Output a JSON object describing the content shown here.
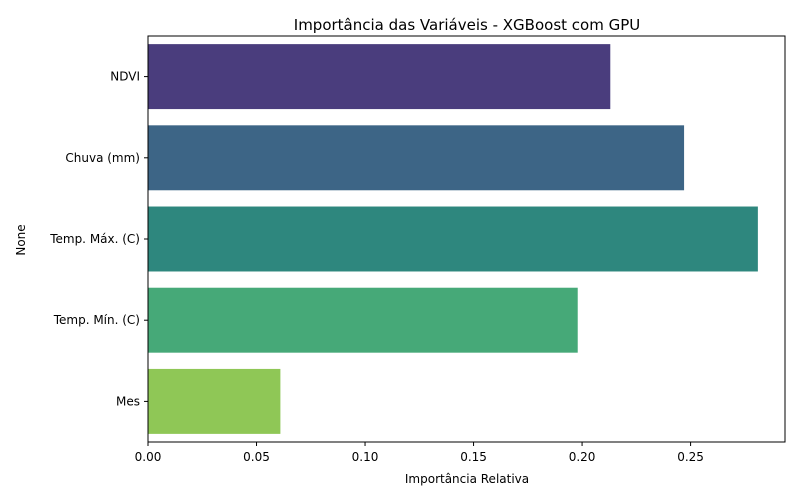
{
  "chart_data": {
    "type": "bar",
    "orientation": "horizontal",
    "title": "Importância das Variáveis - XGBoost com GPU",
    "xlabel": "Importância Relativa",
    "ylabel": "None",
    "categories": [
      "NDVI",
      "Chuva (mm)",
      "Temp. Máx. (C)",
      "Temp. Mín. (C)",
      "Mes"
    ],
    "values": [
      0.213,
      0.247,
      0.281,
      0.198,
      0.061
    ],
    "colors": [
      "#4a3d7d",
      "#3d6586",
      "#2e877e",
      "#46a978",
      "#8fc756"
    ],
    "xlim": [
      0,
      0.2935
    ],
    "xticks": [
      0.0,
      0.05,
      0.1,
      0.15,
      0.2,
      0.25
    ],
    "xtick_labels": [
      "0.00",
      "0.05",
      "0.10",
      "0.15",
      "0.20",
      "0.25"
    ],
    "grid": false,
    "legend": "none"
  }
}
